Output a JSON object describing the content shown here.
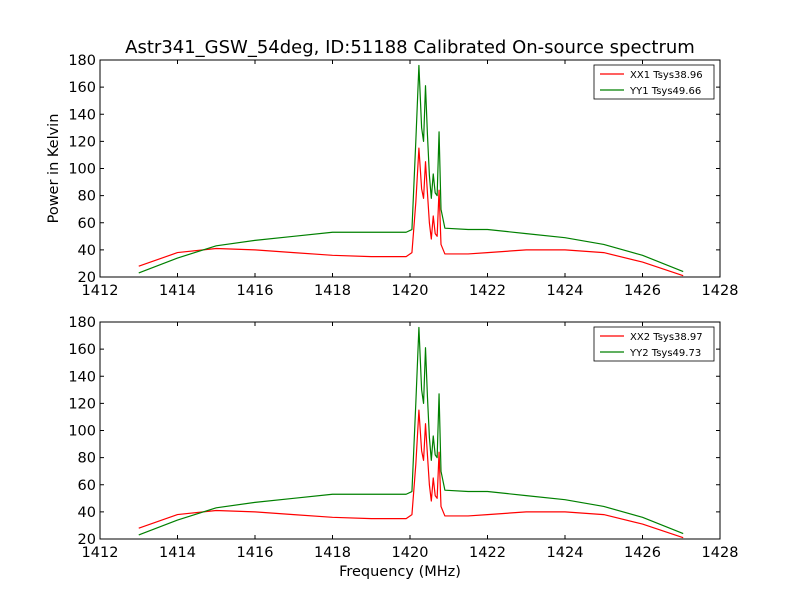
{
  "title": "Astr341_GSW_54deg, ID:51188 Calibrated On-source spectrum",
  "chart_data": [
    {
      "type": "line",
      "xlabel": "",
      "ylabel": "Power in Kelvin",
      "xlim": [
        1412,
        1428
      ],
      "ylim": [
        20,
        180
      ],
      "xticks": [
        1412,
        1414,
        1416,
        1418,
        1420,
        1422,
        1424,
        1426,
        1428
      ],
      "yticks": [
        20,
        40,
        60,
        80,
        100,
        120,
        140,
        160,
        180
      ],
      "grid": false,
      "legend": "top-right",
      "series": [
        {
          "name": "XX1 Tsys38.96",
          "color": "#ff0000",
          "x": [
            1413.0,
            1414.0,
            1415.0,
            1416.0,
            1417.0,
            1418.0,
            1419.0,
            1419.9,
            1420.05,
            1420.15,
            1420.23,
            1420.3,
            1420.35,
            1420.4,
            1420.45,
            1420.5,
            1420.55,
            1420.6,
            1420.65,
            1420.7,
            1420.75,
            1420.8,
            1420.9,
            1421.5,
            1422.0,
            1423.0,
            1424.0,
            1425.0,
            1426.0,
            1427.05
          ],
          "values": [
            28,
            38,
            41,
            40,
            38,
            36,
            35,
            35,
            38,
            75,
            115,
            85,
            78,
            105,
            82,
            60,
            48,
            65,
            52,
            50,
            84,
            44,
            37,
            37,
            38,
            40,
            40,
            38,
            31,
            21
          ]
        },
        {
          "name": "YY1 Tsys49.66",
          "color": "#008000",
          "x": [
            1413.0,
            1414.0,
            1415.0,
            1416.0,
            1417.0,
            1418.0,
            1419.0,
            1419.9,
            1420.05,
            1420.15,
            1420.23,
            1420.3,
            1420.35,
            1420.4,
            1420.45,
            1420.5,
            1420.55,
            1420.6,
            1420.65,
            1420.7,
            1420.75,
            1420.8,
            1420.9,
            1421.5,
            1422.0,
            1423.0,
            1424.0,
            1425.0,
            1426.0,
            1427.05
          ],
          "values": [
            23,
            34,
            43,
            47,
            50,
            53,
            53,
            53,
            55,
            120,
            176,
            130,
            120,
            161,
            125,
            95,
            78,
            96,
            82,
            80,
            127,
            70,
            56,
            55,
            55,
            52,
            49,
            44,
            36,
            24
          ]
        }
      ]
    },
    {
      "type": "line",
      "xlabel": "Frequency (MHz)",
      "ylabel": "",
      "xlim": [
        1412,
        1428
      ],
      "ylim": [
        20,
        180
      ],
      "xticks": [
        1412,
        1414,
        1416,
        1418,
        1420,
        1422,
        1424,
        1426,
        1428
      ],
      "yticks": [
        20,
        40,
        60,
        80,
        100,
        120,
        140,
        160,
        180
      ],
      "grid": false,
      "legend": "top-right",
      "series": [
        {
          "name": "XX2 Tsys38.97",
          "color": "#ff0000",
          "x": [
            1413.0,
            1414.0,
            1415.0,
            1416.0,
            1417.0,
            1418.0,
            1419.0,
            1419.9,
            1420.05,
            1420.15,
            1420.23,
            1420.3,
            1420.35,
            1420.4,
            1420.45,
            1420.5,
            1420.55,
            1420.6,
            1420.65,
            1420.7,
            1420.75,
            1420.8,
            1420.9,
            1421.5,
            1422.0,
            1423.0,
            1424.0,
            1425.0,
            1426.0,
            1427.05
          ],
          "values": [
            28,
            38,
            41,
            40,
            38,
            36,
            35,
            35,
            38,
            75,
            115,
            85,
            78,
            105,
            82,
            60,
            48,
            65,
            52,
            50,
            84,
            44,
            37,
            37,
            38,
            40,
            40,
            38,
            31,
            21
          ]
        },
        {
          "name": "YY2 Tsys49.73",
          "color": "#008000",
          "x": [
            1413.0,
            1414.0,
            1415.0,
            1416.0,
            1417.0,
            1418.0,
            1419.0,
            1419.9,
            1420.05,
            1420.15,
            1420.23,
            1420.3,
            1420.35,
            1420.4,
            1420.45,
            1420.5,
            1420.55,
            1420.6,
            1420.65,
            1420.7,
            1420.75,
            1420.8,
            1420.9,
            1421.5,
            1422.0,
            1423.0,
            1424.0,
            1425.0,
            1426.0,
            1427.05
          ],
          "values": [
            23,
            34,
            43,
            47,
            50,
            53,
            53,
            53,
            55,
            120,
            176,
            130,
            120,
            161,
            125,
            95,
            78,
            96,
            82,
            80,
            127,
            70,
            56,
            55,
            55,
            52,
            49,
            44,
            36,
            24
          ]
        }
      ]
    }
  ]
}
